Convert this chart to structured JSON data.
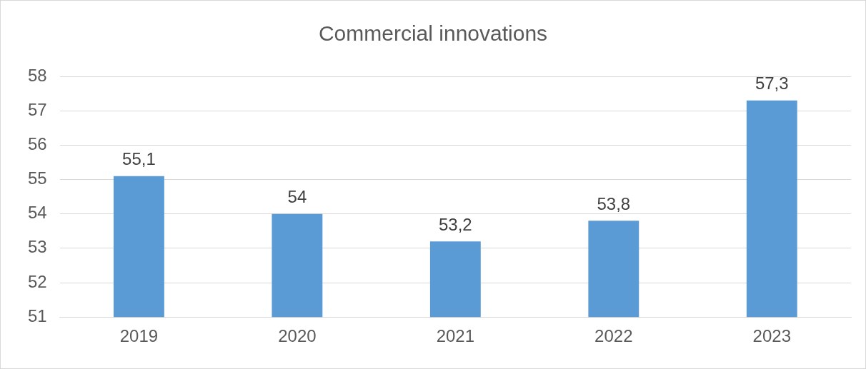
{
  "chart_data": {
    "type": "bar",
    "title": "Commercial innovations",
    "categories": [
      "2019",
      "2020",
      "2021",
      "2022",
      "2023"
    ],
    "values": [
      55.1,
      54,
      53.2,
      53.8,
      57.3
    ],
    "value_labels": [
      "55,1",
      "54",
      "53,2",
      "53,8",
      "57,3"
    ],
    "color": "#5b9bd5",
    "ylim": [
      51,
      58
    ],
    "yticks": [
      51,
      52,
      53,
      54,
      55,
      56,
      57,
      58
    ],
    "grid": "y",
    "legend": false
  }
}
